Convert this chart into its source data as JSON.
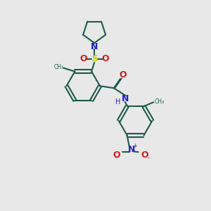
{
  "background_color": "#e8e8e8",
  "bond_color": "#1a5c4a",
  "N_color": "#2020cc",
  "O_color": "#cc2020",
  "S_color": "#cccc00",
  "figsize": [
    3.0,
    3.0
  ],
  "dpi": 100,
  "xlim": [
    0,
    300
  ],
  "ylim": [
    0,
    300
  ]
}
